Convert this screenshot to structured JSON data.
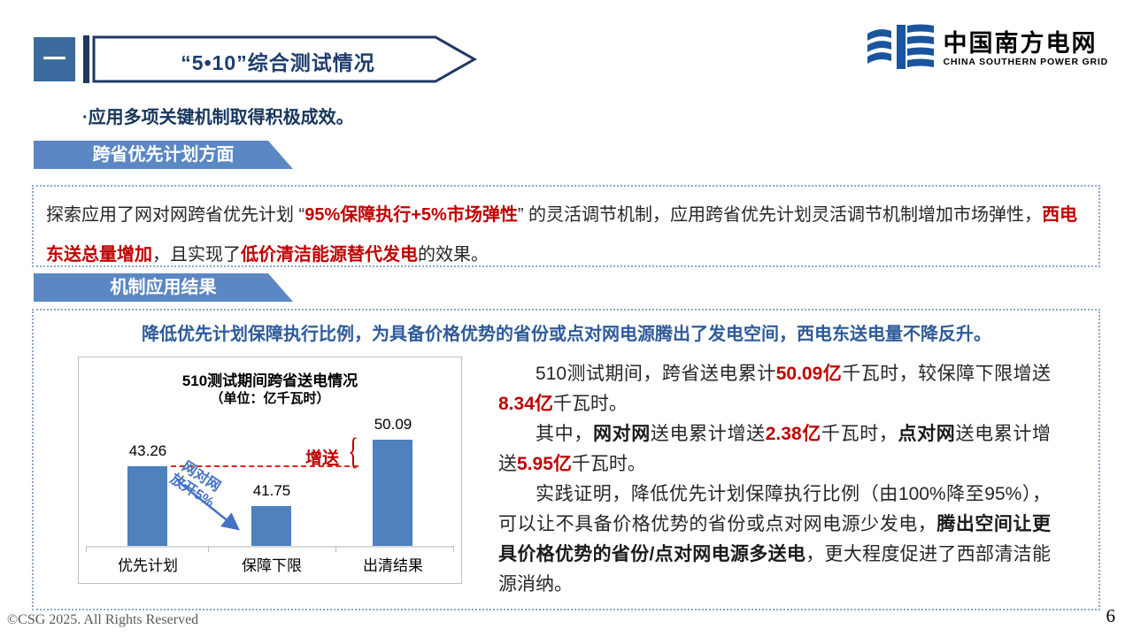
{
  "slide": {
    "index_glyph": "一",
    "title": "“5•10”综合测试情况",
    "logo": {
      "cn": "中国南方电网",
      "en": "CHINA SOUTHERN POWER GRID"
    },
    "bullet": "·应用多项关键机制取得积极成效。",
    "section1_label": "跨省优先计划方面",
    "section2_label": "机制应用结果",
    "box1_rich": [
      {
        "t": "探索应用了网对网跨省优先计划 “"
      },
      {
        "t": "95%保障执行+5%市场弹性",
        "c": "r"
      },
      {
        "t": "” 的灵活调节机制，应用跨省优先计划灵活调节机制增加市场弹性，"
      },
      {
        "t": "西电东送总量增加",
        "c": "r"
      },
      {
        "t": "，且实现了"
      },
      {
        "t": "低价清洁能源替代发电",
        "c": "r"
      },
      {
        "t": "的效果。"
      }
    ],
    "result_headline": "降低优先计划保障执行比例，为具备价格优势的省份或点对网电源腾出了发电空间，西电东送电量不降反升。",
    "paragraphs": [
      [
        {
          "t": "510测试期间，跨省送电累计"
        },
        {
          "t": "50.09亿",
          "c": "r"
        },
        {
          "t": "千瓦时，较保障下限增送"
        },
        {
          "t": "8.34亿",
          "c": "r"
        },
        {
          "t": "千瓦时。"
        }
      ],
      [
        {
          "t": "其中，"
        },
        {
          "t": "网对网",
          "c": "b"
        },
        {
          "t": "送电累计增送"
        },
        {
          "t": "2.38亿",
          "c": "r"
        },
        {
          "t": "千瓦时，"
        },
        {
          "t": "点对网",
          "c": "b"
        },
        {
          "t": "送电累计增送"
        },
        {
          "t": "5.95亿",
          "c": "r"
        },
        {
          "t": "千瓦时。"
        }
      ],
      [
        {
          "t": "实践证明，降低优先计划保障执行比例（由100%降至95%），可以让不具备价格优势的省份或点对网电源少发电，"
        },
        {
          "t": "腾出空间让更具价格优势的省份/点对网电源多送电",
          "c": "b"
        },
        {
          "t": "，更大程度促进了西部清洁能源消纳。"
        }
      ]
    ],
    "footer": {
      "copyright": "©CSG 2025. All Rights Reserved",
      "page": "6"
    }
  },
  "chart_data": {
    "type": "bar",
    "title": "510测试期间跨省送电情况",
    "subtitle": "（单位：亿千瓦时）",
    "unit": "亿千瓦时",
    "categories": [
      "优先计划",
      "保障下限",
      "出清结果"
    ],
    "values": [
      "43.26",
      "41.75",
      "50.09"
    ],
    "bar_color": "#4E81BD",
    "grid": false,
    "annotations": {
      "increase_label": "增送",
      "mechanism_line1": "网对网",
      "mechanism_line2": "放开5%",
      "dashed_line_level": "43.26",
      "dashed_line_color": "#E02424",
      "annotation_blue": "#4472C4",
      "annotation_red": "#C00000"
    }
  },
  "colors": {
    "navy": "#1F3864",
    "title_text": "#1E3C6E",
    "section_banner": "#5B87C4",
    "headline_blue": "#2E5B9A",
    "red": "#C00000",
    "bar_blue": "#4E81BD"
  }
}
